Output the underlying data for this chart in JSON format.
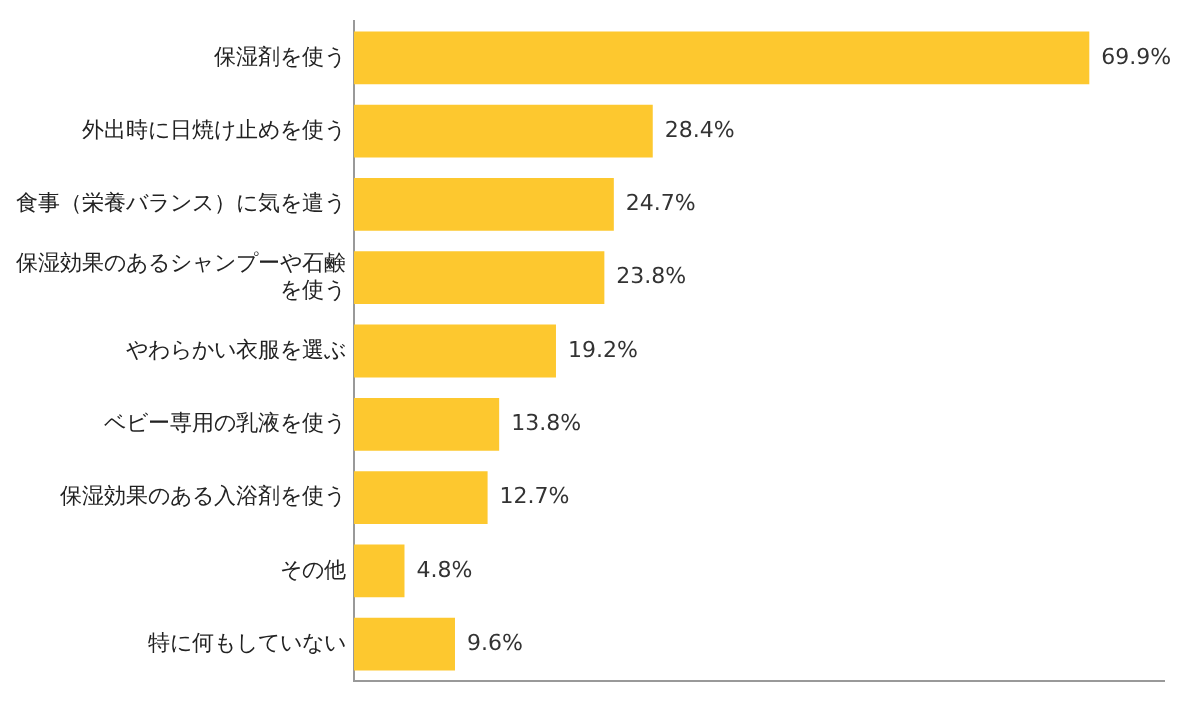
{
  "chart_data": {
    "type": "bar",
    "orientation": "horizontal",
    "categories": [
      "保湿剤を使う",
      "外出時に日焼け止めを使う",
      "食事（栄養バランス）に気を遣う",
      "保湿効果のあるシャンプーや石鹸を使う",
      "やわらかい衣服を選ぶ",
      "ベビー専用の乳液を使う",
      "保湿効果のある入浴剤を使う",
      "その他",
      "特に何もしていない"
    ],
    "values": [
      69.9,
      28.4,
      24.7,
      23.8,
      19.2,
      13.8,
      12.7,
      4.8,
      9.6
    ],
    "value_labels": [
      "69.9%",
      "28.4%",
      "24.7%",
      "23.8%",
      "19.2%",
      "13.8%",
      "12.7%",
      "4.8%",
      "9.6%"
    ],
    "color": "#fdc82f",
    "xlim": [
      0,
      77
    ],
    "grid": false,
    "legend": false,
    "tick_labels": "y"
  }
}
